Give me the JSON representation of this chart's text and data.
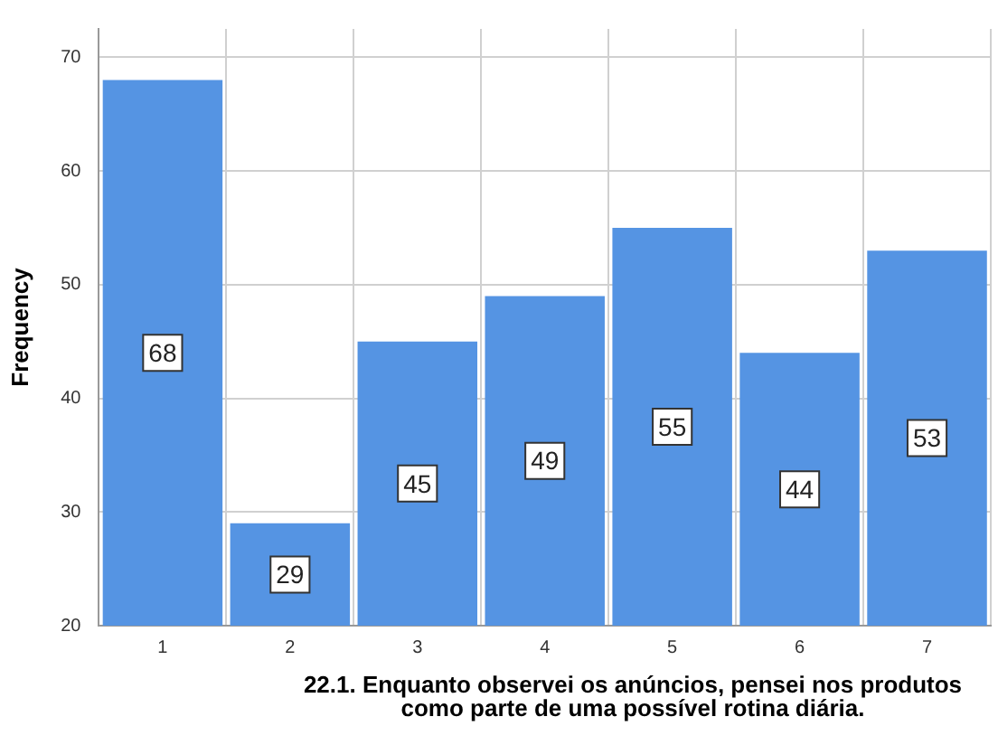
{
  "chart_data": {
    "type": "bar",
    "xlabel": "22.1. Enquanto observei os anúncios, pensei nos produtos como parte de uma possível rotina diária.",
    "ylabel": "Frequency",
    "categories": [
      "1",
      "2",
      "3",
      "4",
      "5",
      "6",
      "7"
    ],
    "values": [
      68,
      29,
      45,
      49,
      55,
      44,
      53
    ],
    "color": "#5594e3",
    "ylim": [
      20,
      72.5
    ],
    "yticks": [
      20,
      30,
      40,
      50,
      60,
      70
    ],
    "grid": true,
    "data_labels": true
  }
}
